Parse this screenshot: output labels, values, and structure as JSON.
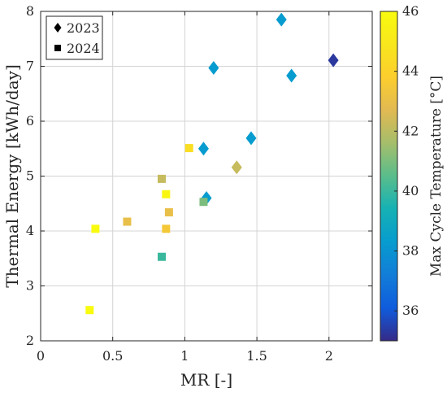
{
  "chart_data": {
    "type": "scatter",
    "title": "",
    "xlabel": "MR [-]",
    "ylabel": "Thermal Energy [kWh/day]",
    "xlim": [
      0,
      2.3
    ],
    "ylim": [
      2,
      8
    ],
    "x_ticks": [
      "0",
      "0.5",
      "1",
      "1.5",
      "2"
    ],
    "y_ticks": [
      "2",
      "3",
      "4",
      "5",
      "6",
      "7",
      "8"
    ],
    "grid": true,
    "legend_position": "top-left",
    "colormap": "parula",
    "colorbar": {
      "label": "Max Cycle Temperature [°C]",
      "range": [
        35,
        46
      ],
      "ticks": [
        "36",
        "38",
        "40",
        "42",
        "44",
        "46"
      ],
      "tick_values": [
        36,
        38,
        40,
        42,
        44,
        46
      ]
    },
    "series": [
      {
        "name": "2023",
        "marker": "diamond",
        "points": [
          {
            "x": 1.67,
            "y": 7.85,
            "temp": 38.3
          },
          {
            "x": 1.2,
            "y": 6.97,
            "temp": 38.3
          },
          {
            "x": 1.74,
            "y": 6.83,
            "temp": 38.3
          },
          {
            "x": 2.03,
            "y": 7.11,
            "temp": 35.3
          },
          {
            "x": 1.46,
            "y": 5.69,
            "temp": 38.3
          },
          {
            "x": 1.13,
            "y": 5.5,
            "temp": 38.3
          },
          {
            "x": 1.36,
            "y": 5.16,
            "temp": 42.2
          },
          {
            "x": 1.15,
            "y": 4.6,
            "temp": 38.3
          }
        ]
      },
      {
        "name": "2024",
        "marker": "square",
        "points": [
          {
            "x": 1.03,
            "y": 5.51,
            "temp": 44.5
          },
          {
            "x": 0.84,
            "y": 4.95,
            "temp": 42.2
          },
          {
            "x": 0.87,
            "y": 4.67,
            "temp": 45.8
          },
          {
            "x": 1.13,
            "y": 4.53,
            "temp": 41.0
          },
          {
            "x": 0.89,
            "y": 4.34,
            "temp": 43.0
          },
          {
            "x": 0.6,
            "y": 4.17,
            "temp": 43.0
          },
          {
            "x": 0.38,
            "y": 4.04,
            "temp": 46.0
          },
          {
            "x": 0.87,
            "y": 4.04,
            "temp": 43.5
          },
          {
            "x": 0.84,
            "y": 3.53,
            "temp": 40.0
          },
          {
            "x": 0.34,
            "y": 2.56,
            "temp": 46.0
          }
        ]
      }
    ]
  },
  "colors": {
    "axis": "#262626",
    "grid": "#d4d4d4",
    "marker_edge": "none"
  }
}
